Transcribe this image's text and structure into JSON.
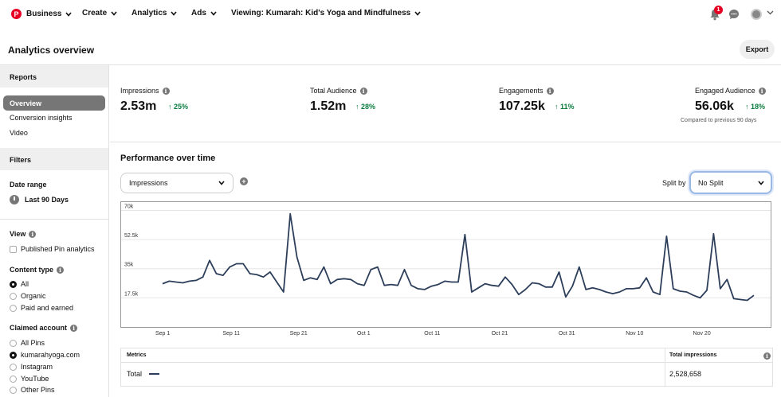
{
  "nav": {
    "logo": "P",
    "business": "Business",
    "create": "Create",
    "analytics": "Analytics",
    "ads": "Ads",
    "viewing": "Viewing: Kumarah: Kid's Yoga and Mindfulness",
    "notification_count": "1"
  },
  "header": {
    "title": "Analytics overview",
    "export_label": "Export"
  },
  "sidebar": {
    "reports_heading": "Reports",
    "reports": [
      "Overview",
      "Conversion insights",
      "Video"
    ],
    "active_report": "Overview",
    "filters_heading": "Filters",
    "date_range_label": "Date range",
    "date_range_value": "Last 90 Days",
    "view_label": "View",
    "published_pin_analytics": "Published Pin analytics",
    "content_type_label": "Content type",
    "content_types": [
      "All",
      "Organic",
      "Paid and earned"
    ],
    "claimed_account_label": "Claimed account",
    "claimed_accounts": [
      "All Pins",
      "kumarahyoga.com",
      "Instagram",
      "YouTube",
      "Other Pins"
    ]
  },
  "metrics": [
    {
      "label": "Impressions",
      "value": "2.53m",
      "change": "25%"
    },
    {
      "label": "Total Audience",
      "value": "1.52m",
      "change": "28%"
    },
    {
      "label": "Engagements",
      "value": "107.25k",
      "change": "11%"
    },
    {
      "label": "Engaged Audience",
      "value": "56.06k",
      "change": "18%"
    }
  ],
  "compared_note": "Compared to previous 90 days",
  "performance": {
    "title": "Performance over time",
    "metric_selected": "Impressions",
    "split_label": "Split by",
    "split_selected": "No Split"
  },
  "chart_data": {
    "type": "line",
    "y_ticks": [
      "70k",
      "52.5k",
      "35k",
      "17.5k"
    ],
    "ylim": [
      0,
      75000
    ],
    "x_ticks": [
      "Sep 1",
      "Sep 11",
      "Sep 21",
      "Oct 1",
      "Oct 11",
      "Oct 21",
      "Oct 31",
      "Nov 10",
      "Nov 20"
    ],
    "grid": true,
    "series": [
      {
        "name": "Total",
        "color": "#2c3e5a",
        "values": [
          26000,
          27500,
          27000,
          26500,
          27500,
          28000,
          30000,
          40000,
          32000,
          31000,
          36000,
          38000,
          38000,
          32000,
          31500,
          30000,
          33000,
          27000,
          21000,
          68000,
          42000,
          28000,
          29500,
          28500,
          36000,
          26000,
          28500,
          29000,
          28500,
          26000,
          25000,
          34500,
          36000,
          25000,
          25500,
          25000,
          34500,
          25000,
          23000,
          22500,
          24500,
          25500,
          27500,
          27000,
          27000,
          55500,
          21000,
          23500,
          26000,
          25000,
          24500,
          30000,
          25500,
          19500,
          22500,
          26500,
          26000,
          24000,
          24000,
          33000,
          18000,
          24500,
          36000,
          22500,
          23500,
          22500,
          21000,
          20000,
          21000,
          23000,
          23000,
          23500,
          29500,
          21000,
          19500,
          54500,
          23000,
          21500,
          21000,
          19000,
          17500,
          22000,
          56000,
          23000,
          28500,
          17000,
          16500,
          16000,
          19000
        ]
      }
    ]
  },
  "table": {
    "metrics_header": "Metrics",
    "total_header": "Total impressions",
    "row_label": "Total",
    "row_value": "2,528,658"
  }
}
